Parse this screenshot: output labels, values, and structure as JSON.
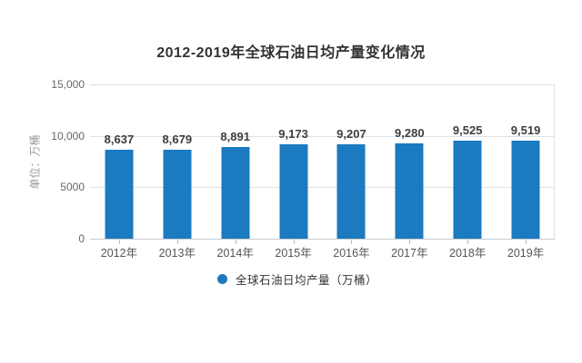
{
  "page": {
    "background": "#ffffff"
  },
  "chart_data": {
    "type": "bar",
    "title": "2012-2019年全球石油日均产量变化情况",
    "ylabel": "单位：万桶",
    "xlabel": "",
    "categories": [
      "2012年",
      "2013年",
      "2014年",
      "2015年",
      "2016年",
      "2017年",
      "2018年",
      "2019年"
    ],
    "series": [
      {
        "name": "全球石油日均产量（万桶）",
        "values": [
          8637,
          8679,
          8891,
          9173,
          9207,
          9280,
          9525,
          9519
        ],
        "value_labels": [
          "8,637",
          "8,679",
          "8,891",
          "9,173",
          "9,207",
          "9,280",
          "9,525",
          "9,519"
        ]
      }
    ],
    "ylim": [
      0,
      15000
    ],
    "yticks": [
      {
        "value": 15000,
        "label": "15,000"
      },
      {
        "value": 10000,
        "label": "10,000"
      },
      {
        "value": 5000,
        "label": "5000"
      },
      {
        "value": 0,
        "label": "0"
      }
    ],
    "grid": true,
    "legend": {
      "position": "bottom-center",
      "marker": "circle",
      "label": "全球石油日均产量（万桶）"
    },
    "colors": {
      "bar": "#1b7ac0",
      "title_text": "#333333",
      "tick_text": "#666666",
      "value_label_text": "#3d3d3d",
      "x_label_text": "#555555",
      "gridline": "#dde1e6",
      "axis_line": "#c6cbd1",
      "unit_text": "#999999",
      "legend_text": "#333333"
    }
  }
}
